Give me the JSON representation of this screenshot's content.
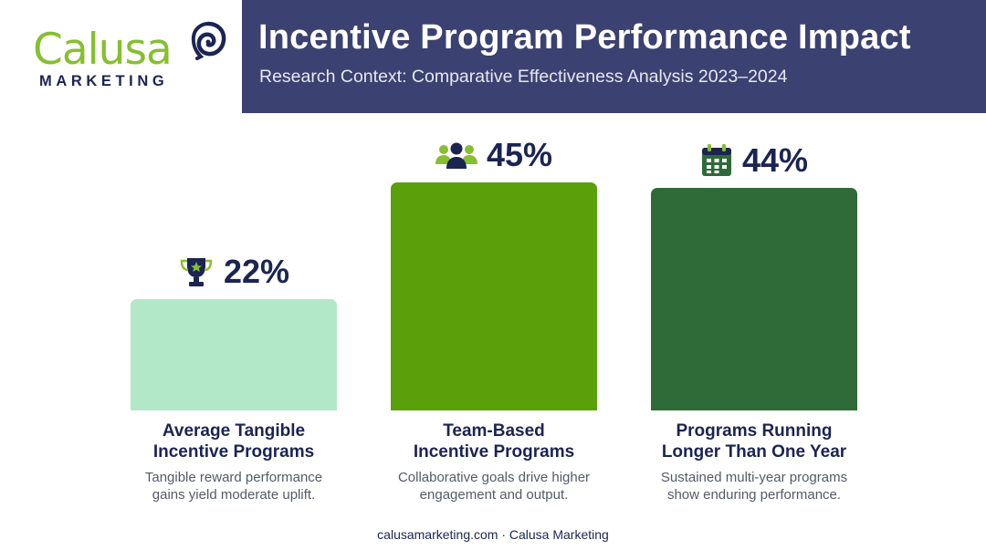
{
  "header": {
    "title": "Incentive Program Performance Impact",
    "subtitle": "Research Context: Comparative Effectiveness Analysis 2023–2024"
  },
  "logo": {
    "wordmark": "Calusa",
    "tagline": "MARKETING",
    "icon": "nautilus-shell-icon"
  },
  "colors": {
    "header_band": "#3b4170",
    "text_dark": "#1c2452",
    "bar_light_green": "#b2e8c8",
    "bar_green": "#5aa00a",
    "bar_dark_green": "#2e6b38",
    "icon_green": "#86bf2f"
  },
  "chart_data": {
    "type": "bar",
    "categories": [
      "Average Tangible Incentive Programs",
      "Team-Based Incentive Programs",
      "Programs Running Longer Than One Year"
    ],
    "values": [
      22,
      45,
      44
    ],
    "ylim": [
      0,
      45
    ],
    "grid": false,
    "unit": "%",
    "bars": [
      {
        "value_label": "22%",
        "icon": "trophy-icon",
        "color": "#b2e8c8",
        "title_lines": [
          "Average Tangible",
          "Incentive Programs"
        ],
        "desc_lines": [
          "Tangible reward performance",
          "gains yield moderate uplift."
        ]
      },
      {
        "value_label": "45%",
        "icon": "team-icon",
        "color": "#5aa00a",
        "title_lines": [
          "Team-Based",
          "Incentive Programs"
        ],
        "desc_lines": [
          "Collaborative goals drive higher",
          "engagement and output."
        ]
      },
      {
        "value_label": "44%",
        "icon": "calendar-icon",
        "color": "#2e6b38",
        "title_lines": [
          "Programs Running",
          "Longer Than One Year"
        ],
        "desc_lines": [
          "Sustained multi-year programs",
          "show enduring performance."
        ]
      }
    ]
  },
  "footer": {
    "text": "calusamarketing.com · Calusa Marketing"
  }
}
